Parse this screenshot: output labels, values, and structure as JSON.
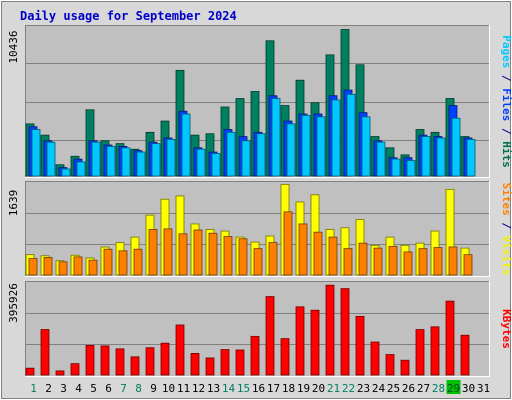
{
  "chart_data": {
    "type": "bar",
    "title": "Daily usage for September 2024",
    "categories": [
      "1",
      "2",
      "3",
      "4",
      "5",
      "6",
      "7",
      "8",
      "9",
      "10",
      "11",
      "12",
      "13",
      "14",
      "15",
      "16",
      "17",
      "18",
      "19",
      "20",
      "21",
      "22",
      "23",
      "24",
      "25",
      "26",
      "27",
      "28",
      "29",
      "30",
      "31"
    ],
    "weekend_days": [
      "1",
      "7",
      "8",
      "14",
      "15",
      "21",
      "22",
      "28",
      "29"
    ],
    "highlight_day": "29",
    "panels": [
      {
        "name": "hits-files-pages",
        "scale_label": "10436",
        "ymax": 10436,
        "side_labels": [
          {
            "text": "Pages",
            "color": "#00c8ff"
          },
          {
            "text": " / ",
            "color": "#00008b"
          },
          {
            "text": "Files",
            "color": "#0040ff"
          },
          {
            "text": " / ",
            "color": "#00008b"
          },
          {
            "text": "Hits",
            "color": "#007050"
          }
        ],
        "series": [
          {
            "name": "Hits",
            "color": "#008060",
            "values": [
              3700,
              2900,
              800,
              1400,
              4700,
              2500,
              2300,
              1900,
              3100,
              3900,
              7500,
              2900,
              3000,
              4900,
              5500,
              6000,
              9600,
              5000,
              6800,
              5200,
              8600,
              10400,
              7900,
              2800,
              2000,
              1500,
              3300,
              3100,
              5500,
              2800,
              0
            ]
          },
          {
            "name": "Files",
            "color": "#0040ff",
            "values": [
              3500,
              2500,
              600,
              1200,
              2500,
              2200,
              2100,
              1800,
              2400,
              2700,
              4600,
              2000,
              1700,
              3300,
              2800,
              3100,
              5700,
              3900,
              4400,
              4400,
              5700,
              6100,
              4500,
              2500,
              1300,
              1300,
              2900,
              2800,
              5000,
              2700,
              0
            ]
          },
          {
            "name": "Pages",
            "color": "#00c8ff",
            "values": [
              3300,
              2400,
              500,
              1000,
              2400,
              2100,
              2000,
              1700,
              2300,
              2600,
              4400,
              1900,
              1600,
              3100,
              2500,
              3000,
              5500,
              3700,
              4300,
              4200,
              5400,
              5800,
              4200,
              2400,
              1200,
              1100,
              2800,
              2700,
              4100,
              2600,
              0
            ]
          }
        ]
      },
      {
        "name": "visits-sites",
        "scale_label": "1639",
        "ymax": 1639,
        "side_labels": [
          {
            "text": "Sites",
            "color": "#ff8000"
          },
          {
            "text": " / ",
            "color": "#00008b"
          },
          {
            "text": "Visits",
            "color": "#f0f000"
          }
        ],
        "series": [
          {
            "name": "Visits",
            "color": "#ffff00",
            "values": [
              370,
              350,
              260,
              360,
              310,
              510,
              590,
              690,
              1090,
              1380,
              1440,
              930,
              830,
              800,
              690,
              600,
              710,
              1650,
              1330,
              1460,
              830,
              860,
              1010,
              540,
              690,
              540,
              580,
              800,
              1560,
              490,
              0
            ]
          },
          {
            "name": "Sites",
            "color": "#ff8000",
            "values": [
              300,
              320,
              240,
              330,
              270,
              470,
              440,
              470,
              830,
              840,
              750,
              820,
              760,
              700,
              660,
              480,
              590,
              1150,
              930,
              780,
              690,
              480,
              580,
              490,
              520,
              420,
              480,
              500,
              510,
              370,
              0
            ]
          }
        ]
      },
      {
        "name": "kbytes",
        "scale_label": "395926",
        "ymax": 395926,
        "side_labels": [
          {
            "text": "KBytes",
            "color": "#ff0000"
          }
        ],
        "series": [
          {
            "name": "KBytes",
            "color": "#ff0000",
            "values": [
              30000,
              200000,
              18000,
              50000,
              130000,
              128000,
              115000,
              80000,
              120000,
              140000,
              220000,
              95000,
              75000,
              112000,
              110000,
              170000,
              345000,
              160000,
              300000,
              285000,
              395000,
              380000,
              258000,
              145000,
              90000,
              65000,
              200000,
              212000,
              325000,
              175000,
              0
            ]
          }
        ]
      }
    ]
  }
}
